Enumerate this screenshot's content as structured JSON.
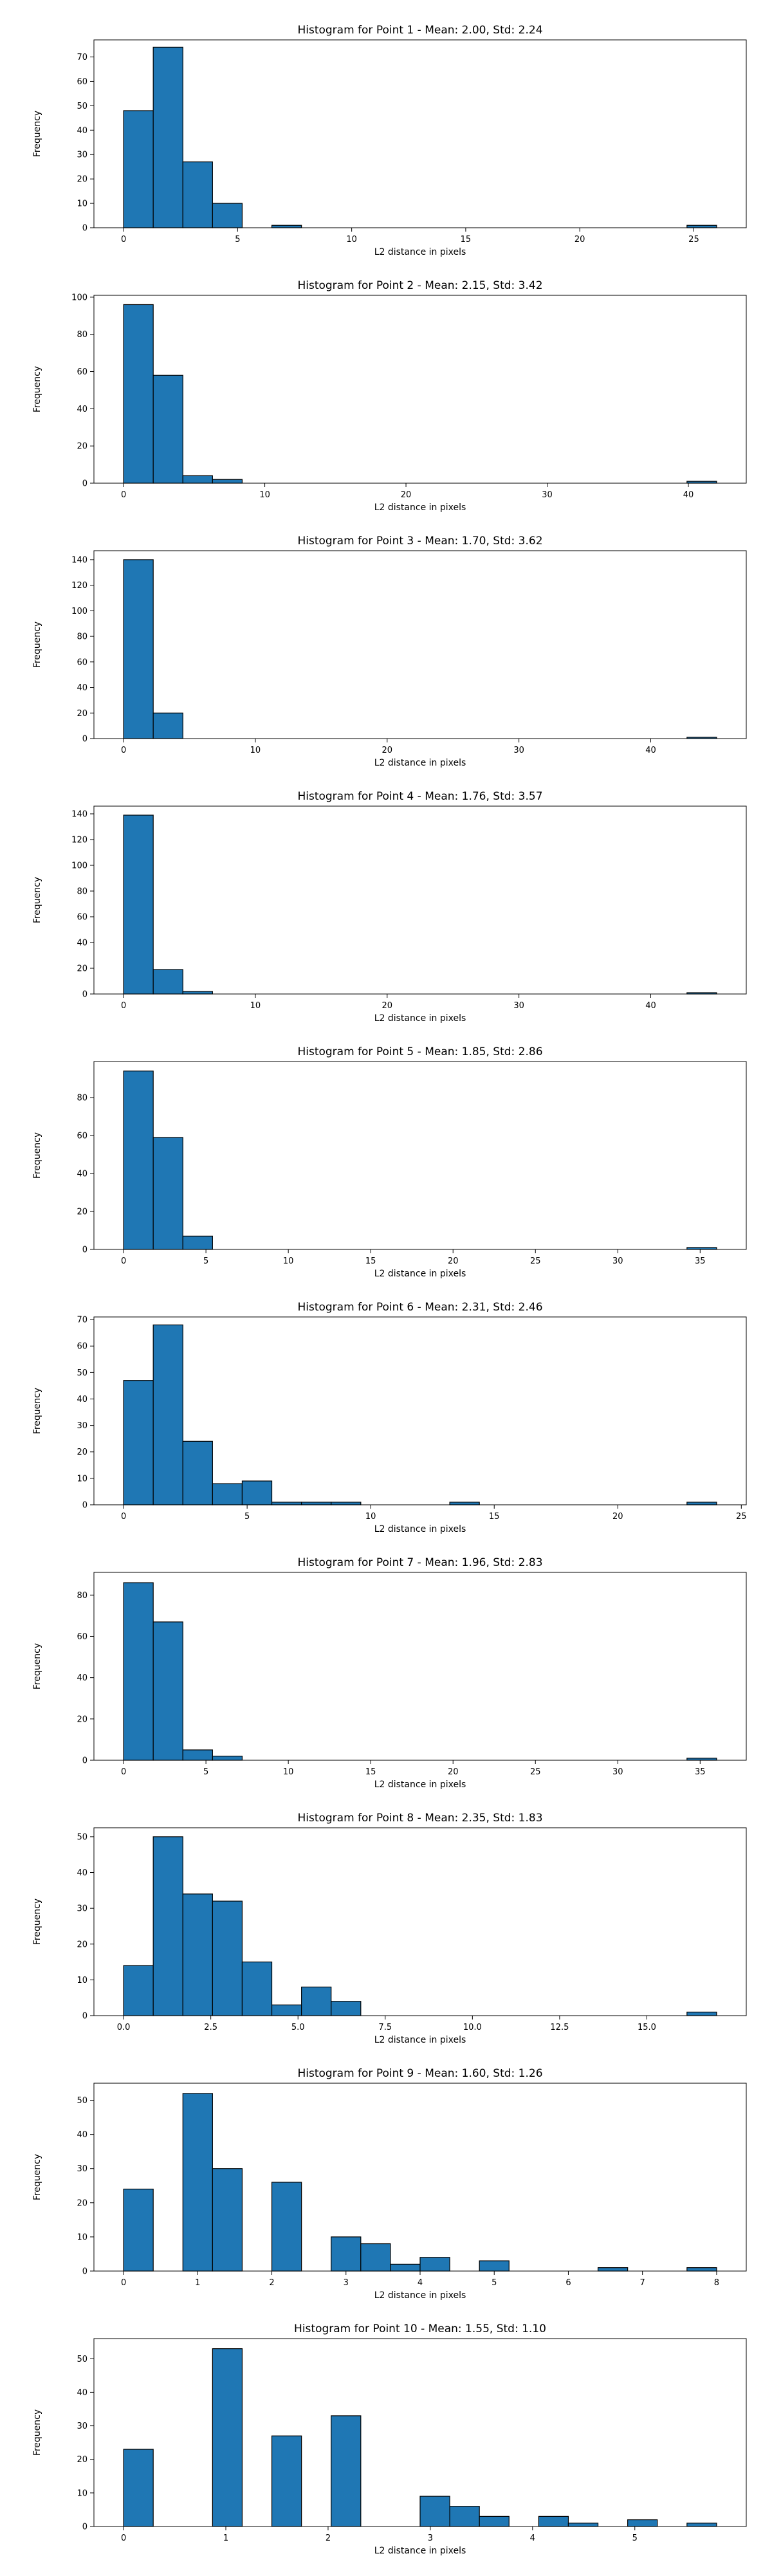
{
  "figure": {
    "bar_color": "#1f77b4",
    "edge_color": "#000000"
  },
  "chart_data": [
    {
      "type": "bar",
      "title": "Histogram for Point 1 - Mean: 2.00, Std: 2.24",
      "xlabel": "L2 distance in pixels",
      "ylabel": "Frequency",
      "xlim": [
        -1.3,
        27.3
      ],
      "ylim": [
        0,
        77
      ],
      "xticks": [
        0,
        5,
        10,
        15,
        20,
        25
      ],
      "yticks": [
        0,
        10,
        20,
        30,
        40,
        50,
        60,
        70
      ],
      "bins": [
        {
          "x0": 0,
          "x1": 1.3,
          "value": 48
        },
        {
          "x0": 1.3,
          "x1": 2.6,
          "value": 74
        },
        {
          "x0": 2.6,
          "x1": 3.9,
          "value": 27
        },
        {
          "x0": 3.9,
          "x1": 5.2,
          "value": 10
        },
        {
          "x0": 6.5,
          "x1": 7.8,
          "value": 1
        },
        {
          "x0": 24.7,
          "x1": 26.0,
          "value": 1
        }
      ]
    },
    {
      "type": "bar",
      "title": "Histogram for Point 2 - Mean: 2.15, Std: 3.42",
      "xlabel": "L2 distance in pixels",
      "ylabel": "Frequency",
      "xlim": [
        -2.1,
        44.1
      ],
      "ylim": [
        0,
        101
      ],
      "xticks": [
        0,
        10,
        20,
        30,
        40
      ],
      "yticks": [
        0,
        20,
        40,
        60,
        80,
        100
      ],
      "bins": [
        {
          "x0": 0,
          "x1": 2.1,
          "value": 96
        },
        {
          "x0": 2.1,
          "x1": 4.2,
          "value": 58
        },
        {
          "x0": 4.2,
          "x1": 6.3,
          "value": 4
        },
        {
          "x0": 6.3,
          "x1": 8.4,
          "value": 2
        },
        {
          "x0": 39.9,
          "x1": 42.0,
          "value": 1
        }
      ]
    },
    {
      "type": "bar",
      "title": "Histogram for Point 3 - Mean: 1.70, Std: 3.62",
      "xlabel": "L2 distance in pixels",
      "ylabel": "Frequency",
      "xlim": [
        -2.25,
        47.25
      ],
      "ylim": [
        0,
        147
      ],
      "xticks": [
        0,
        10,
        20,
        30,
        40
      ],
      "yticks": [
        0,
        20,
        40,
        60,
        80,
        100,
        120,
        140
      ],
      "bins": [
        {
          "x0": 0,
          "x1": 2.25,
          "value": 140
        },
        {
          "x0": 2.25,
          "x1": 4.5,
          "value": 20
        },
        {
          "x0": 42.75,
          "x1": 45.0,
          "value": 1
        }
      ]
    },
    {
      "type": "bar",
      "title": "Histogram for Point 4 - Mean: 1.76, Std: 3.57",
      "xlabel": "L2 distance in pixels",
      "ylabel": "Frequency",
      "xlim": [
        -2.25,
        47.25
      ],
      "ylim": [
        0,
        146
      ],
      "xticks": [
        0,
        10,
        20,
        30,
        40
      ],
      "yticks": [
        0,
        20,
        40,
        60,
        80,
        100,
        120,
        140
      ],
      "bins": [
        {
          "x0": 0,
          "x1": 2.25,
          "value": 139
        },
        {
          "x0": 2.25,
          "x1": 4.5,
          "value": 19
        },
        {
          "x0": 4.5,
          "x1": 6.75,
          "value": 2
        },
        {
          "x0": 42.75,
          "x1": 45.0,
          "value": 1
        }
      ]
    },
    {
      "type": "bar",
      "title": "Histogram for Point 5 - Mean: 1.85, Std: 2.86",
      "xlabel": "L2 distance in pixels",
      "ylabel": "Frequency",
      "xlim": [
        -1.8,
        37.8
      ],
      "ylim": [
        0,
        99
      ],
      "xticks": [
        0,
        5,
        10,
        15,
        20,
        25,
        30,
        35
      ],
      "yticks": [
        0,
        20,
        40,
        60,
        80
      ],
      "bins": [
        {
          "x0": 0,
          "x1": 1.8,
          "value": 94
        },
        {
          "x0": 1.8,
          "x1": 3.6,
          "value": 59
        },
        {
          "x0": 3.6,
          "x1": 5.4,
          "value": 7
        },
        {
          "x0": 34.2,
          "x1": 36.0,
          "value": 1
        }
      ]
    },
    {
      "type": "bar",
      "title": "Histogram for Point 6 - Mean: 2.31, Std: 2.46",
      "xlabel": "L2 distance in pixels",
      "ylabel": "Frequency",
      "xlim": [
        -1.2,
        25.2
      ],
      "ylim": [
        0,
        71
      ],
      "xticks": [
        0,
        5,
        10,
        15,
        20,
        25
      ],
      "yticks": [
        0,
        10,
        20,
        30,
        40,
        50,
        60,
        70
      ],
      "bins": [
        {
          "x0": 0,
          "x1": 1.2,
          "value": 47
        },
        {
          "x0": 1.2,
          "x1": 2.4,
          "value": 68
        },
        {
          "x0": 2.4,
          "x1": 3.6,
          "value": 24
        },
        {
          "x0": 3.6,
          "x1": 4.8,
          "value": 8
        },
        {
          "x0": 4.8,
          "x1": 6.0,
          "value": 9
        },
        {
          "x0": 6.0,
          "x1": 7.2,
          "value": 1
        },
        {
          "x0": 7.2,
          "x1": 8.4,
          "value": 1
        },
        {
          "x0": 8.4,
          "x1": 9.6,
          "value": 1
        },
        {
          "x0": 13.2,
          "x1": 14.4,
          "value": 1
        },
        {
          "x0": 22.8,
          "x1": 24.0,
          "value": 1
        }
      ]
    },
    {
      "type": "bar",
      "title": "Histogram for Point 7 - Mean: 1.96, Std: 2.83",
      "xlabel": "L2 distance in pixels",
      "ylabel": "Frequency",
      "xlim": [
        -1.8,
        37.8
      ],
      "ylim": [
        0,
        91
      ],
      "xticks": [
        0,
        5,
        10,
        15,
        20,
        25,
        30,
        35
      ],
      "yticks": [
        0,
        20,
        40,
        60,
        80
      ],
      "bins": [
        {
          "x0": 0,
          "x1": 1.8,
          "value": 86
        },
        {
          "x0": 1.8,
          "x1": 3.6,
          "value": 67
        },
        {
          "x0": 3.6,
          "x1": 5.4,
          "value": 5
        },
        {
          "x0": 5.4,
          "x1": 7.2,
          "value": 2
        },
        {
          "x0": 34.2,
          "x1": 36.0,
          "value": 1
        }
      ]
    },
    {
      "type": "bar",
      "title": "Histogram for Point 8 - Mean: 2.35, Std: 1.83",
      "xlabel": "L2 distance in pixels",
      "ylabel": "Frequency",
      "xlim": [
        -0.85,
        17.85
      ],
      "ylim": [
        0,
        52.5
      ],
      "xticks": [
        0.0,
        2.5,
        5.0,
        7.5,
        10.0,
        12.5,
        15.0
      ],
      "xtick_labels": [
        "0.0",
        "2.5",
        "5.0",
        "7.5",
        "10.0",
        "12.5",
        "15.0"
      ],
      "yticks": [
        0,
        10,
        20,
        30,
        40,
        50
      ],
      "bins": [
        {
          "x0": 0,
          "x1": 0.85,
          "value": 14
        },
        {
          "x0": 0.85,
          "x1": 1.7,
          "value": 50
        },
        {
          "x0": 1.7,
          "x1": 2.55,
          "value": 34
        },
        {
          "x0": 2.55,
          "x1": 3.4,
          "value": 32
        },
        {
          "x0": 3.4,
          "x1": 4.25,
          "value": 15
        },
        {
          "x0": 4.25,
          "x1": 5.1,
          "value": 3
        },
        {
          "x0": 5.1,
          "x1": 5.95,
          "value": 8
        },
        {
          "x0": 5.95,
          "x1": 6.8,
          "value": 4
        },
        {
          "x0": 16.15,
          "x1": 17.0,
          "value": 1
        }
      ]
    },
    {
      "type": "bar",
      "title": "Histogram for Point 9 - Mean: 1.60, Std: 1.26",
      "xlabel": "L2 distance in pixels",
      "ylabel": "Frequency",
      "xlim": [
        -0.4,
        8.4
      ],
      "ylim": [
        0,
        55
      ],
      "xticks": [
        0,
        1,
        2,
        3,
        4,
        5,
        6,
        7,
        8
      ],
      "yticks": [
        0,
        10,
        20,
        30,
        40,
        50
      ],
      "bins": [
        {
          "x0": 0,
          "x1": 0.4,
          "value": 24
        },
        {
          "x0": 0.8,
          "x1": 1.2,
          "value": 52
        },
        {
          "x0": 1.2,
          "x1": 1.6,
          "value": 30
        },
        {
          "x0": 2.0,
          "x1": 2.4,
          "value": 26
        },
        {
          "x0": 2.8,
          "x1": 3.2,
          "value": 10
        },
        {
          "x0": 3.2,
          "x1": 3.6,
          "value": 8
        },
        {
          "x0": 3.6,
          "x1": 4.0,
          "value": 2
        },
        {
          "x0": 4.0,
          "x1": 4.4,
          "value": 4
        },
        {
          "x0": 4.8,
          "x1": 5.2,
          "value": 3
        },
        {
          "x0": 6.4,
          "x1": 6.8,
          "value": 1
        },
        {
          "x0": 7.6,
          "x1": 8.0,
          "value": 1
        }
      ]
    },
    {
      "type": "bar",
      "title": "Histogram for Point 10 - Mean: 1.55, Std: 1.10",
      "xlabel": "L2 distance in pixels",
      "ylabel": "Frequency",
      "xlim": [
        -0.29,
        6.09
      ],
      "ylim": [
        0,
        56
      ],
      "xticks": [
        0,
        1,
        2,
        3,
        4,
        5
      ],
      "yticks": [
        0,
        10,
        20,
        30,
        40,
        50
      ],
      "bins": [
        {
          "x0": 0,
          "x1": 0.29,
          "value": 23
        },
        {
          "x0": 0.87,
          "x1": 1.16,
          "value": 53
        },
        {
          "x0": 1.45,
          "x1": 1.74,
          "value": 27
        },
        {
          "x0": 2.03,
          "x1": 2.32,
          "value": 33
        },
        {
          "x0": 2.9,
          "x1": 3.19,
          "value": 9
        },
        {
          "x0": 3.19,
          "x1": 3.48,
          "value": 6
        },
        {
          "x0": 3.48,
          "x1": 3.77,
          "value": 3
        },
        {
          "x0": 4.06,
          "x1": 4.35,
          "value": 3
        },
        {
          "x0": 4.35,
          "x1": 4.64,
          "value": 1
        },
        {
          "x0": 4.93,
          "x1": 5.22,
          "value": 2
        },
        {
          "x0": 5.51,
          "x1": 5.8,
          "value": 1
        }
      ]
    }
  ]
}
